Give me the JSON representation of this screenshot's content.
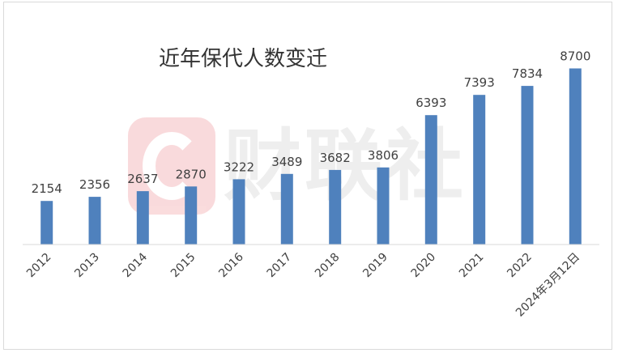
{
  "chart_data": {
    "type": "bar",
    "title": "近年保代人数变迁",
    "categories": [
      "2012",
      "2013",
      "2014",
      "2015",
      "2016",
      "2017",
      "2018",
      "2019",
      "2020",
      "2021",
      "2022",
      "2024年3月12日"
    ],
    "values": [
      2154,
      2356,
      2637,
      2870,
      3222,
      3489,
      3682,
      3806,
      6393,
      7393,
      7834,
      8700
    ],
    "value_labels": [
      "2154",
      "2356",
      "2637",
      "2870",
      "3222",
      "3489",
      "3682",
      "3806",
      "6393",
      "7393",
      "7834",
      "8700"
    ],
    "xlabel": "",
    "ylabel": "",
    "ylim": [
      0,
      10000
    ],
    "grid": false,
    "legend": "none",
    "bar_color": "#4f81bd"
  },
  "watermark": {
    "text": "财联社",
    "brand_color": "#e0232b"
  }
}
